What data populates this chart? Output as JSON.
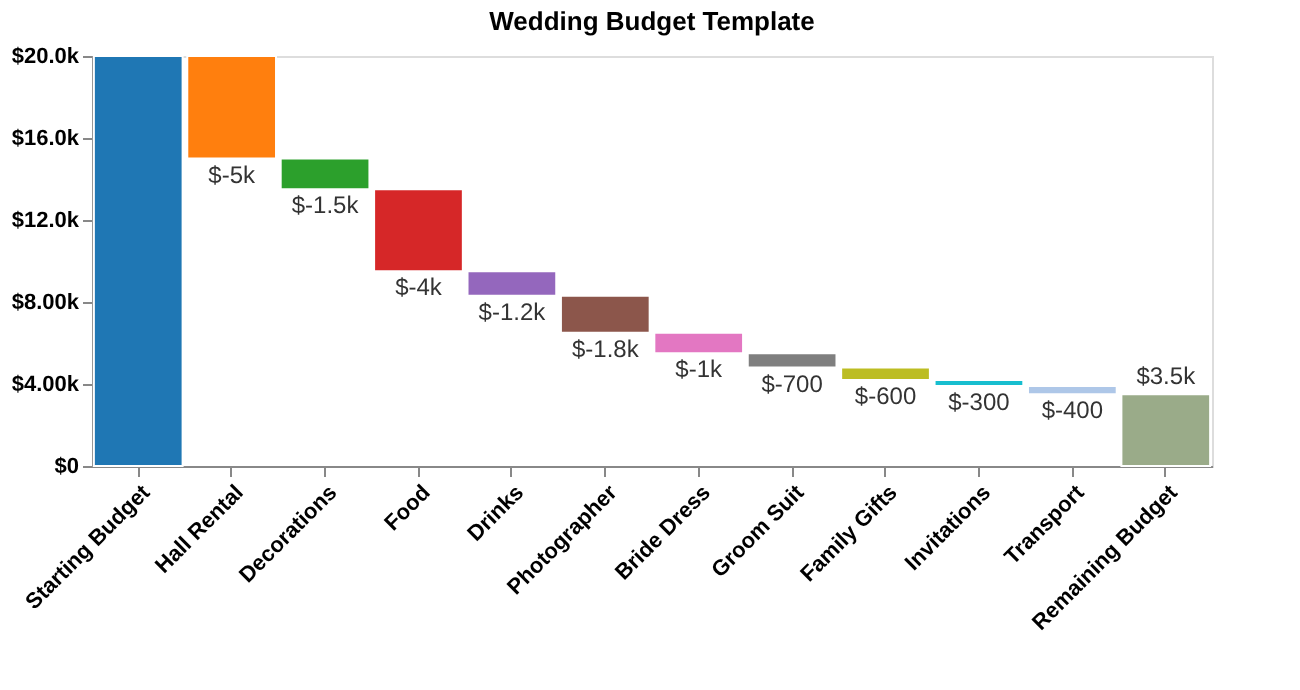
{
  "chart_data": {
    "type": "bar",
    "title": "Wedding Budget Template",
    "categories": [
      "Starting Budget",
      "Hall Rental",
      "Decorations",
      "Food",
      "Drinks",
      "Photographer",
      "Bride Dress",
      "Groom Suit",
      "Family Gifts",
      "Invitations",
      "Transport",
      "Remaining Budget"
    ],
    "values": [
      20000,
      -5000,
      -1500,
      -4000,
      -1200,
      -1800,
      -1000,
      -700,
      -600,
      -300,
      -400,
      3500
    ],
    "base": [
      0,
      20000,
      15000,
      13500,
      9500,
      8300,
      6500,
      5500,
      4800,
      4200,
      3900,
      0
    ],
    "colors": [
      "#1f77b4",
      "#ff7f0e",
      "#2ca02c",
      "#d62728",
      "#9467bd",
      "#8c564b",
      "#e377c2",
      "#7f7f7f",
      "#bcbd22",
      "#17becf",
      "#aec7e8",
      "#9aab89"
    ],
    "value_labels": [
      null,
      "$-5k",
      "$-1.5k",
      "$-4k",
      "$-1.2k",
      "$-1.8k",
      "$-1k",
      "$-700",
      "$-600",
      "$-300",
      "$-400",
      "$3.5k"
    ],
    "ylim": [
      0,
      20000
    ],
    "yticks": [
      {
        "value": 0,
        "label": "$0"
      },
      {
        "value": 4000,
        "label": "$4.00k"
      },
      {
        "value": 8000,
        "label": "$8.00k"
      },
      {
        "value": 12000,
        "label": "$12.0k"
      },
      {
        "value": 16000,
        "label": "$16.0k"
      },
      {
        "value": 20000,
        "label": "$20.0k"
      }
    ],
    "grid": false,
    "legend": false
  }
}
